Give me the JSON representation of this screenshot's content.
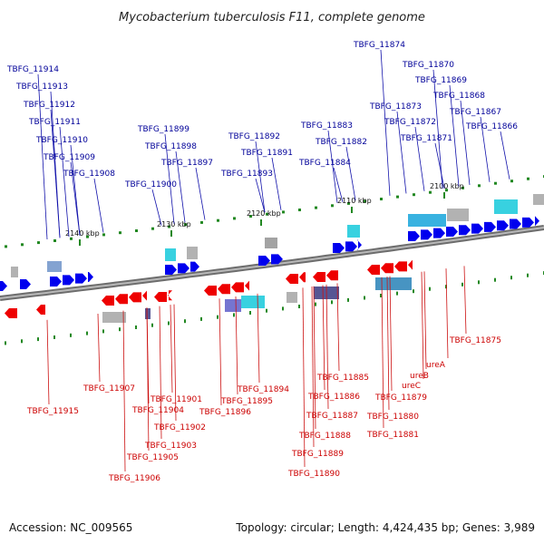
{
  "title": "Mycobacterium tuberculosis F11, complete genome",
  "footer": {
    "accession": "Accession: NC_009565",
    "summary": "Topology: circular; Length: 4,424,435 bp; Genes: 3,989"
  },
  "colors": {
    "forward": "#0000ee",
    "reverse": "#ee0000",
    "backbone": "#888888",
    "tick_dot": "#228822",
    "label_forward": "#000099",
    "label_reverse": "#cc0000"
  },
  "ticks": [
    "2140 kbp",
    "2130 kbp",
    "2120 kbp",
    "2110 kbp",
    "2100 kbp"
  ],
  "forward_labels": [
    "TBFG_11874",
    "TBFG_11870",
    "TBFG_11869",
    "TBFG_11868",
    "TBFG_11867",
    "TBFG_11866",
    "TBFG_11873",
    "TBFG_11872",
    "TBFG_11871",
    "TBFG_11883",
    "TBFG_11882",
    "TBFG_11884",
    "TBFG_11892",
    "TBFG_11891",
    "TBFG_11893",
    "TBFG_11899",
    "TBFG_11898",
    "TBFG_11897",
    "TBFG_11900",
    "TBFG_11914",
    "TBFG_11913",
    "TBFG_11912",
    "TBFG_11911",
    "TBFG_11910",
    "TBFG_11909",
    "TBFG_11908"
  ],
  "reverse_labels": [
    "TBFG_11875",
    "ureA",
    "ureB",
    "ureC",
    "TBFG_11879",
    "TBFG_11880",
    "TBFG_11881",
    "TBFG_11885",
    "TBFG_11886",
    "TBFG_11887",
    "TBFG_11888",
    "TBFG_11889",
    "TBFG_11890",
    "TBFG_11894",
    "TBFG_11895",
    "TBFG_11896",
    "TBFG_11907",
    "TBFG_11901",
    "TBFG_11904",
    "TBFG_11902",
    "TBFG_11903",
    "TBFG_11905",
    "TBFG_11906",
    "TBFG_11915"
  ]
}
